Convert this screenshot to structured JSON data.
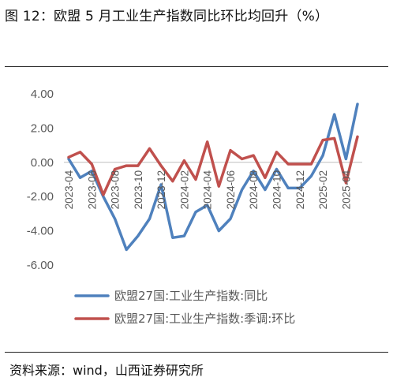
{
  "figure_title": "图 12：欧盟 5 月工业生产指数同比环比均回升（%）",
  "source": "资料来源：wind，山西证券研究所",
  "chart_data": {
    "type": "line",
    "title": "",
    "xlabel": "",
    "ylabel": "",
    "ylim": [
      -6,
      4
    ],
    "yticks": [
      "4.00",
      "2.00",
      "0.00",
      "-2.00",
      "-4.00",
      "-6.00"
    ],
    "x": [
      "2023-04",
      "2023-05",
      "2023-06",
      "2023-07",
      "2023-08",
      "2023-09",
      "2023-10",
      "2023-11",
      "2023-12",
      "2024-01",
      "2024-02",
      "2024-03",
      "2024-04",
      "2024-05",
      "2024-06",
      "2024-07",
      "2024-08",
      "2024-09",
      "2024-10",
      "2024-11",
      "2024-12",
      "2025-01",
      "2025-02",
      "2025-03",
      "2025-04",
      "2025-05"
    ],
    "x_tick_labels": [
      "2023-04",
      "2023-06",
      "2023-08",
      "2023-10",
      "2023-12",
      "2024-02",
      "2024-04",
      "2024-06",
      "2024-08",
      "2024-10",
      "2024-12",
      "2025-02",
      "2025-04"
    ],
    "grid": false,
    "legend_position": "bottom",
    "series": [
      {
        "name": "欧盟27国:工业生产指数:同比",
        "color": "#4F81BD",
        "values": [
          0.2,
          -0.9,
          -0.5,
          -2.0,
          -3.3,
          -5.1,
          -4.3,
          -3.3,
          -1.3,
          -4.4,
          -4.3,
          -2.9,
          -2.5,
          -4.0,
          -3.3,
          -1.6,
          -0.5,
          -1.6,
          -0.4,
          -1.5,
          -1.5,
          -0.8,
          0.4,
          2.8,
          0.2,
          3.4
        ]
      },
      {
        "name": "欧盟27国:工业生产指数:季调:环比",
        "color": "#C0504D",
        "values": [
          0.3,
          0.6,
          -0.1,
          -1.9,
          -0.4,
          -0.2,
          -0.2,
          0.8,
          -0.2,
          -1.1,
          0.1,
          -1.0,
          1.2,
          -1.4,
          0.7,
          0.2,
          0.4,
          -0.9,
          0.6,
          -0.1,
          -0.1,
          -0.1,
          1.3,
          1.4,
          -1.2,
          1.5
        ]
      }
    ]
  }
}
